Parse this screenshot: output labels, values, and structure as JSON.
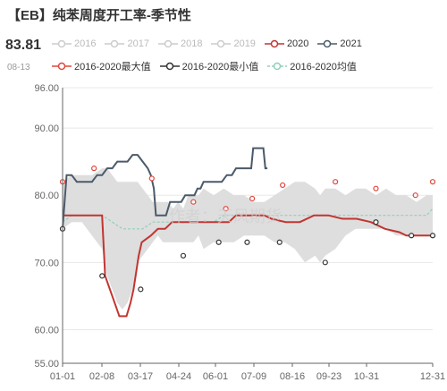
{
  "header": {
    "title": "【EB】纯苯周度开工率-季节性",
    "latest_value": "83.81",
    "latest_date": "08-13"
  },
  "legend": {
    "row1": [
      {
        "label": "2016",
        "color": "#cccccc",
        "icon": "circle-line-icon"
      },
      {
        "label": "2017",
        "color": "#cccccc",
        "icon": "circle-line-icon"
      },
      {
        "label": "2018",
        "color": "#cccccc",
        "icon": "circle-line-icon"
      },
      {
        "label": "2019",
        "color": "#cccccc",
        "icon": "circle-line-icon"
      },
      {
        "label": "2020",
        "color": "#c23531",
        "icon": "circle-line-icon"
      },
      {
        "label": "2021",
        "color": "#4a5a6a",
        "icon": "circle-line-icon"
      }
    ],
    "row2": [
      {
        "label": "2016-2020最大值",
        "color": "#e0463c",
        "icon": "circle-line-icon"
      },
      {
        "label": "2016-2020最小值",
        "color": "#333333",
        "icon": "circle-line-icon"
      },
      {
        "label": "2016-2020均值",
        "color": "#8fd0b8",
        "icon": "circle-dash-icon"
      }
    ]
  },
  "watermark": "作者：天风期货",
  "chart_data": {
    "type": "line",
    "x_ticks": [
      "01-01",
      "02-08",
      "03-17",
      "04-24",
      "06-01",
      "07-09",
      "08-16",
      "09-23",
      "10-31",
      "12-31"
    ],
    "y_ticks": [
      "55.00",
      "60.00",
      "70.00",
      "80.00",
      "90.00",
      "96.00"
    ],
    "ylim": [
      55,
      96
    ],
    "x_range_days": [
      1,
      366
    ],
    "series": [
      {
        "name": "2020",
        "color": "#c23531",
        "points": [
          [
            1,
            77
          ],
          [
            40,
            77
          ],
          [
            43,
            68
          ],
          [
            50,
            65
          ],
          [
            57,
            62
          ],
          [
            64,
            62
          ],
          [
            68,
            64
          ],
          [
            71,
            66
          ],
          [
            76,
            71
          ],
          [
            79,
            73
          ],
          [
            88,
            74
          ],
          [
            95,
            75
          ],
          [
            102,
            75
          ],
          [
            109,
            76
          ],
          [
            116,
            76
          ],
          [
            123,
            76
          ],
          [
            130,
            76
          ],
          [
            137,
            76
          ],
          [
            151,
            76
          ],
          [
            165,
            76
          ],
          [
            172,
            77
          ],
          [
            179,
            77
          ],
          [
            186,
            77
          ],
          [
            193,
            77
          ],
          [
            200,
            77
          ],
          [
            207,
            76.5
          ],
          [
            221,
            76
          ],
          [
            235,
            76
          ],
          [
            249,
            77
          ],
          [
            263,
            77
          ],
          [
            277,
            76.5
          ],
          [
            291,
            76.5
          ],
          [
            305,
            76
          ],
          [
            319,
            75
          ],
          [
            333,
            74.5
          ],
          [
            340,
            74
          ],
          [
            347,
            74
          ],
          [
            354,
            74
          ],
          [
            361,
            74
          ],
          [
            366,
            74
          ]
        ]
      },
      {
        "name": "2021",
        "color": "#4a5a6a",
        "points": [
          [
            1,
            75
          ],
          [
            5,
            83
          ],
          [
            10,
            83
          ],
          [
            15,
            82
          ],
          [
            20,
            82
          ],
          [
            25,
            82
          ],
          [
            30,
            82
          ],
          [
            35,
            83
          ],
          [
            40,
            83
          ],
          [
            45,
            84
          ],
          [
            50,
            84
          ],
          [
            55,
            85
          ],
          [
            60,
            85
          ],
          [
            65,
            85
          ],
          [
            70,
            86
          ],
          [
            75,
            86
          ],
          [
            80,
            85
          ],
          [
            85,
            84
          ],
          [
            88,
            83
          ],
          [
            91,
            81
          ],
          [
            93,
            77
          ],
          [
            95,
            77
          ],
          [
            100,
            77
          ],
          [
            103,
            77
          ],
          [
            107,
            79
          ],
          [
            111,
            79
          ],
          [
            118,
            79
          ],
          [
            122,
            80
          ],
          [
            128,
            80
          ],
          [
            131,
            80
          ],
          [
            134,
            81
          ],
          [
            137,
            81
          ],
          [
            140,
            82
          ],
          [
            145,
            82
          ],
          [
            150,
            82
          ],
          [
            155,
            82
          ],
          [
            158,
            82
          ],
          [
            163,
            83
          ],
          [
            168,
            83
          ],
          [
            172,
            84
          ],
          [
            177,
            84
          ],
          [
            182,
            84
          ],
          [
            187,
            84
          ],
          [
            189,
            87
          ],
          [
            193,
            87
          ],
          [
            197,
            87
          ],
          [
            199,
            87
          ],
          [
            201,
            84
          ],
          [
            203,
            84
          ]
        ]
      }
    ],
    "band": {
      "name": "2016-2020 range",
      "color": "#dedede",
      "points": [
        [
          1,
          82,
          75
        ],
        [
          10,
          83,
          76
        ],
        [
          20,
          83,
          76
        ],
        [
          30,
          83,
          74
        ],
        [
          40,
          84,
          72
        ],
        [
          45,
          84,
          68
        ],
        [
          50,
          83,
          66
        ],
        [
          55,
          82,
          64
        ],
        [
          60,
          82,
          63
        ],
        [
          65,
          82,
          64
        ],
        [
          70,
          82,
          66
        ],
        [
          75,
          82,
          70
        ],
        [
          80,
          81,
          71
        ],
        [
          85,
          80,
          72
        ],
        [
          90,
          79,
          73
        ],
        [
          95,
          79,
          74
        ],
        [
          100,
          79,
          73
        ],
        [
          105,
          79,
          73
        ],
        [
          110,
          78,
          73
        ],
        [
          115,
          79,
          73
        ],
        [
          120,
          78,
          73
        ],
        [
          125,
          80,
          73
        ],
        [
          130,
          80,
          73
        ],
        [
          135,
          80,
          74
        ],
        [
          140,
          81,
          72
        ],
        [
          150,
          80,
          73
        ],
        [
          160,
          81,
          73
        ],
        [
          170,
          80,
          73
        ],
        [
          180,
          80,
          74
        ],
        [
          190,
          79,
          74
        ],
        [
          200,
          79,
          74
        ],
        [
          210,
          80,
          73
        ],
        [
          220,
          81,
          73
        ],
        [
          230,
          82,
          72
        ],
        [
          240,
          82,
          70
        ],
        [
          250,
          81,
          71
        ],
        [
          255,
          80,
          70
        ],
        [
          260,
          81,
          71
        ],
        [
          270,
          81,
          72
        ],
        [
          280,
          80,
          74
        ],
        [
          290,
          81,
          75
        ],
        [
          300,
          81,
          75
        ],
        [
          310,
          80,
          75
        ],
        [
          320,
          81,
          75
        ],
        [
          330,
          80,
          74
        ],
        [
          340,
          80,
          74
        ],
        [
          350,
          79,
          74
        ],
        [
          360,
          80,
          74
        ],
        [
          366,
          80,
          74
        ]
      ]
    },
    "mean": {
      "name": "2016-2020均值",
      "color": "#8fd0b8",
      "points": [
        [
          1,
          76
        ],
        [
          10,
          77
        ],
        [
          20,
          77
        ],
        [
          30,
          77
        ],
        [
          40,
          77
        ],
        [
          50,
          76
        ],
        [
          60,
          75
        ],
        [
          70,
          75
        ],
        [
          80,
          75
        ],
        [
          90,
          76
        ],
        [
          100,
          76
        ],
        [
          110,
          76
        ],
        [
          120,
          76
        ],
        [
          130,
          76
        ],
        [
          140,
          76
        ],
        [
          150,
          76
        ],
        [
          160,
          77
        ],
        [
          170,
          77
        ],
        [
          180,
          77
        ],
        [
          190,
          77
        ],
        [
          200,
          77
        ],
        [
          210,
          77
        ],
        [
          220,
          77
        ],
        [
          230,
          77
        ],
        [
          240,
          77
        ],
        [
          250,
          77
        ],
        [
          260,
          77
        ],
        [
          270,
          77
        ],
        [
          280,
          77
        ],
        [
          290,
          77
        ],
        [
          300,
          77
        ],
        [
          310,
          77
        ],
        [
          320,
          77
        ],
        [
          330,
          77
        ],
        [
          340,
          77
        ],
        [
          350,
          77
        ],
        [
          360,
          77
        ],
        [
          366,
          78
        ]
      ]
    },
    "max_markers": {
      "name": "2016-2020最大值",
      "color": "#e0463c",
      "points": [
        [
          1,
          82
        ],
        [
          32,
          84
        ],
        [
          89,
          82.5
        ],
        [
          130,
          79
        ],
        [
          162,
          78
        ],
        [
          188,
          79.5
        ],
        [
          218,
          81.5
        ],
        [
          270,
          82
        ],
        [
          310,
          81
        ],
        [
          349,
          80
        ],
        [
          366,
          82
        ]
      ]
    },
    "min_markers": {
      "name": "2016-2020最小值",
      "color": "#333333",
      "points": [
        [
          1,
          75
        ],
        [
          40,
          68
        ],
        [
          78,
          66
        ],
        [
          120,
          71
        ],
        [
          155,
          73
        ],
        [
          183,
          73
        ],
        [
          215,
          73
        ],
        [
          260,
          70
        ],
        [
          310,
          76
        ],
        [
          345,
          74
        ],
        [
          366,
          74
        ]
      ]
    }
  }
}
